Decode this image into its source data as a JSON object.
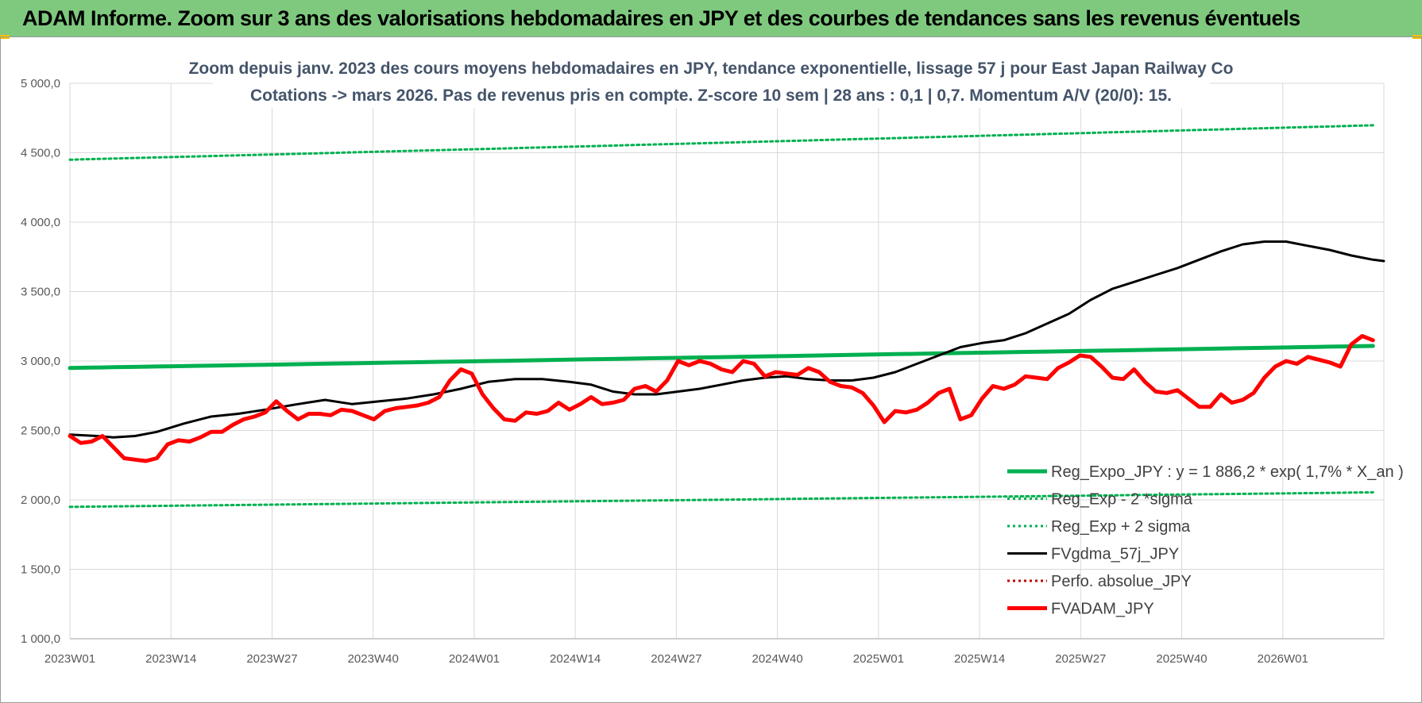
{
  "banner": {
    "title": "ADAM Informe. Zoom sur 3 ans des valorisations hebdomadaires en JPY et des courbes de tendances sans les revenus éventuels"
  },
  "colors": {
    "banner_bg": "#7fc97f",
    "regression": "#00b050",
    "price": "#ff0000",
    "moving_average": "#000000",
    "perf": "#c00000",
    "title": "#44546a"
  },
  "chart_data": {
    "type": "line",
    "title": "Zoom depuis janv. 2023 des cours moyens hebdomadaires en JPY, tendance exponentielle, lissage 57 j pour East Japan Railway Co",
    "subtitle": "Cotations -> mars 2026. Pas de revenus pris en compte. Z-score 10 sem | 28 ans : 0,1 | 0,7. Momentum A/V (20/0): 15.",
    "xlabel": "",
    "ylabel": "",
    "ylim": [
      1000,
      5000
    ],
    "yticks": [
      "1 000,0",
      "1 500,0",
      "2 000,0",
      "2 500,0",
      "3 000,0",
      "3 500,0",
      "4 000,0",
      "4 500,0",
      "5 000,0"
    ],
    "ytick_values": [
      1000,
      1500,
      2000,
      2500,
      3000,
      3500,
      4000,
      4500,
      5000
    ],
    "xticks": [
      "2023W01",
      "2023W14",
      "2023W27",
      "2023W40",
      "2024W01",
      "2024W14",
      "2024W27",
      "2024W40",
      "2025W01",
      "2025W14",
      "2025W27",
      "2025W40",
      "2026W01"
    ],
    "x_weeks_total": 170,
    "grid": true,
    "legend_position": "bottom-right",
    "series": [
      {
        "name": "Reg_Expo_JPY : y = 1 886,2 * exp( 1,7% *  X_an )",
        "style": "solid-thick",
        "color": "#00b050",
        "start": 2950,
        "end": 3110
      },
      {
        "name": "Reg_Exp - 2 *sigma",
        "style": "dotted",
        "color": "#00b050",
        "start": 1950,
        "end": 2055
      },
      {
        "name": "Reg_Exp + 2 sigma",
        "style": "dotted",
        "color": "#00b050",
        "start": 4450,
        "end": 4700
      },
      {
        "name": "FVgdma_57j_JPY",
        "style": "solid",
        "color": "#000000",
        "points": [
          [
            0,
            2470
          ],
          [
            5,
            2460
          ],
          [
            8,
            2450
          ],
          [
            12,
            2460
          ],
          [
            16,
            2490
          ],
          [
            21,
            2550
          ],
          [
            26,
            2600
          ],
          [
            31,
            2620
          ],
          [
            36,
            2650
          ],
          [
            42,
            2690
          ],
          [
            47,
            2720
          ],
          [
            52,
            2690
          ],
          [
            57,
            2710
          ],
          [
            62,
            2730
          ],
          [
            67,
            2760
          ],
          [
            72,
            2800
          ],
          [
            77,
            2850
          ],
          [
            82,
            2870
          ],
          [
            87,
            2870
          ],
          [
            92,
            2850
          ],
          [
            96,
            2830
          ],
          [
            100,
            2780
          ],
          [
            104,
            2760
          ],
          [
            108,
            2760
          ],
          [
            112,
            2780
          ],
          [
            116,
            2800
          ],
          [
            120,
            2830
          ],
          [
            124,
            2860
          ],
          [
            128,
            2880
          ],
          [
            132,
            2890
          ],
          [
            136,
            2870
          ],
          [
            140,
            2860
          ],
          [
            144,
            2860
          ],
          [
            148,
            2880
          ],
          [
            152,
            2920
          ],
          [
            156,
            2980
          ],
          [
            160,
            3040
          ],
          [
            164,
            3100
          ],
          [
            168,
            3130
          ],
          [
            172,
            3150
          ],
          [
            176,
            3200
          ],
          [
            180,
            3270
          ],
          [
            184,
            3340
          ],
          [
            188,
            3440
          ],
          [
            192,
            3520
          ],
          [
            196,
            3570
          ],
          [
            200,
            3620
          ],
          [
            204,
            3670
          ],
          [
            208,
            3730
          ],
          [
            212,
            3790
          ],
          [
            216,
            3840
          ],
          [
            220,
            3860
          ],
          [
            224,
            3860
          ],
          [
            228,
            3830
          ],
          [
            232,
            3800
          ],
          [
            236,
            3760
          ],
          [
            240,
            3730
          ],
          [
            242,
            3720
          ]
        ]
      },
      {
        "name": "Perfo. absolue_JPY",
        "style": "dotted",
        "color": "#c00000",
        "points": []
      },
      {
        "name": "FVADAM_JPY",
        "style": "solid-thick",
        "color": "#ff0000",
        "points": [
          [
            0,
            2460
          ],
          [
            2,
            2410
          ],
          [
            4,
            2420
          ],
          [
            6,
            2460
          ],
          [
            8,
            2380
          ],
          [
            10,
            2300
          ],
          [
            12,
            2290
          ],
          [
            14,
            2280
          ],
          [
            16,
            2300
          ],
          [
            18,
            2400
          ],
          [
            20,
            2430
          ],
          [
            22,
            2420
          ],
          [
            24,
            2450
          ],
          [
            26,
            2490
          ],
          [
            28,
            2490
          ],
          [
            30,
            2540
          ],
          [
            32,
            2580
          ],
          [
            34,
            2600
          ],
          [
            36,
            2630
          ],
          [
            38,
            2710
          ],
          [
            40,
            2640
          ],
          [
            42,
            2580
          ],
          [
            44,
            2620
          ],
          [
            46,
            2620
          ],
          [
            48,
            2610
          ],
          [
            50,
            2650
          ],
          [
            52,
            2640
          ],
          [
            54,
            2610
          ],
          [
            56,
            2580
          ],
          [
            58,
            2640
          ],
          [
            60,
            2660
          ],
          [
            62,
            2670
          ],
          [
            64,
            2680
          ],
          [
            66,
            2700
          ],
          [
            68,
            2740
          ],
          [
            70,
            2860
          ],
          [
            72,
            2940
          ],
          [
            74,
            2910
          ],
          [
            76,
            2760
          ],
          [
            78,
            2660
          ],
          [
            80,
            2580
          ],
          [
            82,
            2570
          ],
          [
            84,
            2630
          ],
          [
            86,
            2620
          ],
          [
            88,
            2640
          ],
          [
            90,
            2700
          ],
          [
            92,
            2650
          ],
          [
            94,
            2690
          ],
          [
            96,
            2740
          ],
          [
            98,
            2690
          ],
          [
            100,
            2700
          ],
          [
            102,
            2720
          ],
          [
            104,
            2800
          ],
          [
            106,
            2820
          ],
          [
            108,
            2780
          ],
          [
            110,
            2860
          ],
          [
            112,
            3000
          ],
          [
            114,
            2970
          ],
          [
            116,
            3000
          ],
          [
            118,
            2980
          ],
          [
            120,
            2940
          ],
          [
            122,
            2920
          ],
          [
            124,
            3000
          ],
          [
            126,
            2980
          ],
          [
            128,
            2890
          ],
          [
            130,
            2920
          ],
          [
            132,
            2910
          ],
          [
            134,
            2900
          ],
          [
            136,
            2950
          ],
          [
            138,
            2920
          ],
          [
            140,
            2850
          ],
          [
            142,
            2820
          ],
          [
            144,
            2810
          ],
          [
            146,
            2770
          ],
          [
            148,
            2680
          ],
          [
            150,
            2560
          ],
          [
            152,
            2640
          ],
          [
            154,
            2630
          ],
          [
            156,
            2650
          ],
          [
            158,
            2700
          ],
          [
            160,
            2770
          ],
          [
            162,
            2800
          ],
          [
            164,
            2580
          ],
          [
            166,
            2610
          ],
          [
            168,
            2730
          ],
          [
            170,
            2820
          ],
          [
            172,
            2800
          ],
          [
            174,
            2830
          ],
          [
            176,
            2890
          ],
          [
            178,
            2880
          ],
          [
            180,
            2870
          ],
          [
            182,
            2950
          ],
          [
            184,
            2990
          ],
          [
            186,
            3040
          ],
          [
            188,
            3030
          ],
          [
            190,
            2960
          ],
          [
            192,
            2880
          ],
          [
            194,
            2870
          ],
          [
            196,
            2940
          ],
          [
            198,
            2850
          ],
          [
            200,
            2780
          ],
          [
            202,
            2770
          ],
          [
            204,
            2790
          ],
          [
            206,
            2730
          ],
          [
            208,
            2670
          ],
          [
            210,
            2670
          ],
          [
            212,
            2760
          ],
          [
            214,
            2700
          ],
          [
            216,
            2720
          ],
          [
            218,
            2770
          ],
          [
            220,
            2880
          ],
          [
            222,
            2960
          ],
          [
            224,
            3000
          ],
          [
            226,
            2980
          ],
          [
            228,
            3030
          ],
          [
            230,
            3010
          ],
          [
            232,
            2990
          ],
          [
            234,
            2960
          ],
          [
            236,
            3120
          ],
          [
            238,
            3180
          ],
          [
            240,
            3150
          ]
        ]
      }
    ]
  }
}
